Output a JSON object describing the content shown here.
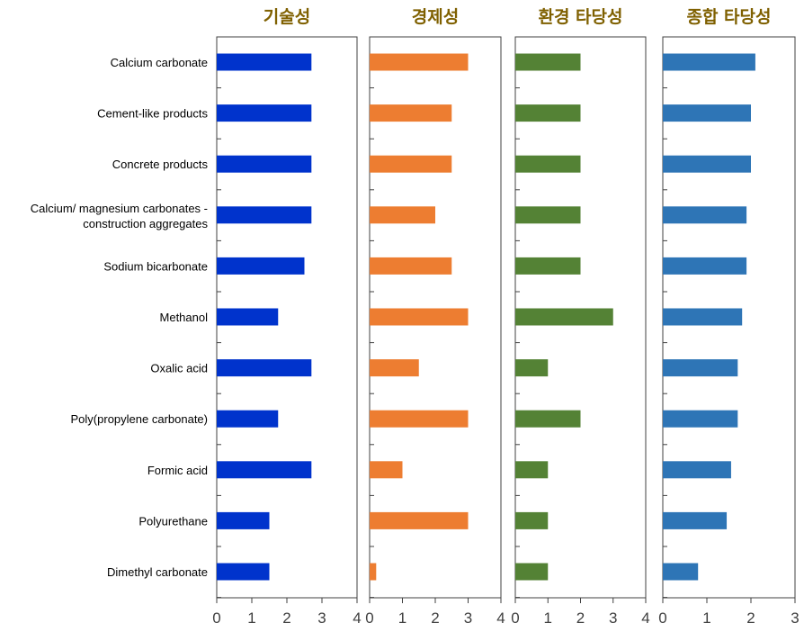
{
  "chart_data": {
    "type": "bar",
    "orientation": "horizontal",
    "categories": [
      "Calcium carbonate",
      "Cement-like products",
      "Concrete products",
      "Calcium/ magnesium carbonates -\nconstruction aggregates",
      "Sodium bicarbonate",
      "Methanol",
      "Oxalic acid",
      "Poly(propylene carbonate)",
      "Formic acid",
      "Polyurethane",
      "Dimethyl carbonate"
    ],
    "panels": [
      {
        "title": "기술성",
        "color": "#0033cc",
        "xlim": [
          0,
          4
        ],
        "ticks": [
          0,
          1,
          2,
          3,
          4
        ],
        "values": [
          2.7,
          2.7,
          2.7,
          2.7,
          2.5,
          1.75,
          2.7,
          1.75,
          2.7,
          1.5,
          1.5
        ]
      },
      {
        "title": "경제성",
        "color": "#ed7d31",
        "xlim": [
          0,
          4
        ],
        "ticks": [
          0,
          1,
          2,
          3,
          4
        ],
        "values": [
          3.0,
          2.5,
          2.5,
          2.0,
          2.5,
          3.0,
          1.5,
          3.0,
          1.0,
          3.0,
          0.2
        ]
      },
      {
        "title": "환경 타당성",
        "color": "#548235",
        "xlim": [
          0,
          4
        ],
        "ticks": [
          0,
          1,
          2,
          3,
          4
        ],
        "values": [
          2.0,
          2.0,
          2.0,
          2.0,
          2.0,
          3.0,
          1.0,
          2.0,
          1.0,
          1.0,
          1.0
        ]
      },
      {
        "title": "종합 타당성",
        "color": "#2e75b6",
        "xlim": [
          0,
          3
        ],
        "ticks": [
          0,
          1,
          2,
          3
        ],
        "values": [
          2.1,
          2.0,
          2.0,
          1.9,
          1.9,
          1.8,
          1.7,
          1.7,
          1.55,
          1.45,
          0.8
        ]
      }
    ],
    "title_color": "#7f6000",
    "grid": false,
    "legend": "none"
  }
}
